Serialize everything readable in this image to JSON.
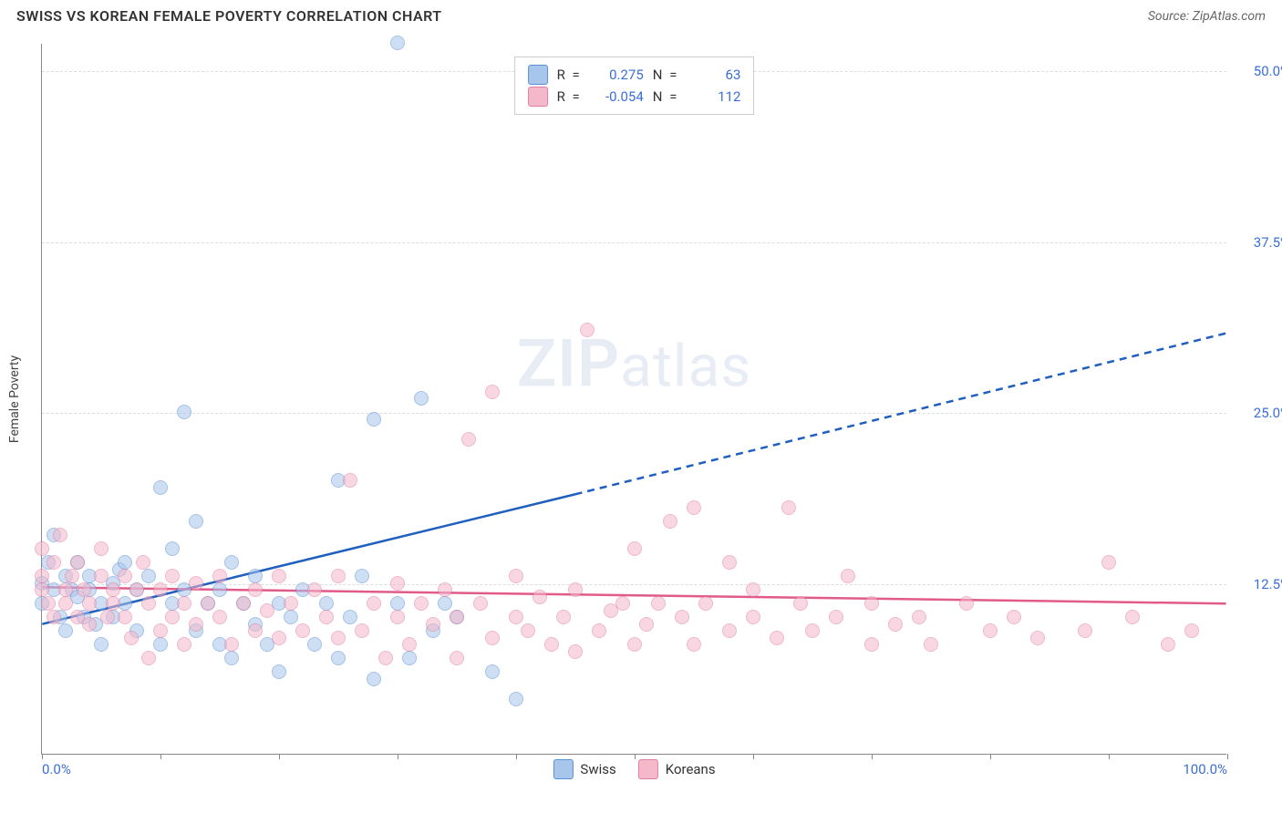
{
  "title": "SWISS VS KOREAN FEMALE POVERTY CORRELATION CHART",
  "source_label": "Source: ZipAtlas.com",
  "y_axis_label": "Female Poverty",
  "watermark": "ZIPatlas",
  "chart": {
    "type": "scatter",
    "xlim": [
      0,
      100
    ],
    "ylim": [
      0,
      52
    ],
    "background_color": "#ffffff",
    "grid_color": "#dddddd",
    "axis_color": "#888888",
    "y_ticks": [
      12.5,
      25.0,
      37.5,
      50.0
    ],
    "y_tick_labels": [
      "12.5%",
      "25.0%",
      "37.5%",
      "50.0%"
    ],
    "x_ticks": [
      0,
      10,
      20,
      30,
      40,
      50,
      60,
      70,
      80,
      90,
      100
    ],
    "x_tick_labels_shown": {
      "0": "0.0%",
      "100": "100.0%"
    },
    "tick_label_color": "#3b6fd6",
    "tick_label_fontsize": 15,
    "point_radius": 8,
    "point_opacity": 0.55,
    "series": [
      {
        "name": "Swiss",
        "color_fill": "#a8c5eb",
        "color_stroke": "#5b8fd6",
        "r_value": "0.275",
        "n_value": "63",
        "trend": {
          "x1": 0,
          "y1": 9.5,
          "x2": 45,
          "y2": 19.0,
          "x2_dash": 100,
          "y2_dash": 30.8,
          "color": "#1f5fbf",
          "width": 2.5
        },
        "points": [
          [
            0,
            11
          ],
          [
            0,
            12.5
          ],
          [
            0.5,
            14
          ],
          [
            1,
            12
          ],
          [
            1,
            16
          ],
          [
            1.5,
            10
          ],
          [
            2,
            13
          ],
          [
            2,
            9
          ],
          [
            2.5,
            12
          ],
          [
            3,
            11.5
          ],
          [
            3,
            14
          ],
          [
            3.5,
            10
          ],
          [
            4,
            12
          ],
          [
            4,
            13
          ],
          [
            4.5,
            9.5
          ],
          [
            5,
            11
          ],
          [
            5,
            8
          ],
          [
            6,
            12.5
          ],
          [
            6,
            10
          ],
          [
            6.5,
            13.5
          ],
          [
            7,
            11
          ],
          [
            7,
            14
          ],
          [
            8,
            9
          ],
          [
            8,
            12
          ],
          [
            9,
            13
          ],
          [
            10,
            19.5
          ],
          [
            10,
            8
          ],
          [
            11,
            11
          ],
          [
            11,
            15
          ],
          [
            12,
            25
          ],
          [
            12,
            12
          ],
          [
            13,
            9
          ],
          [
            13,
            17
          ],
          [
            14,
            11
          ],
          [
            15,
            8
          ],
          [
            15,
            12
          ],
          [
            16,
            14
          ],
          [
            16,
            7
          ],
          [
            17,
            11
          ],
          [
            18,
            9.5
          ],
          [
            18,
            13
          ],
          [
            19,
            8
          ],
          [
            20,
            11
          ],
          [
            20,
            6
          ],
          [
            21,
            10
          ],
          [
            22,
            12
          ],
          [
            23,
            8
          ],
          [
            24,
            11
          ],
          [
            25,
            20
          ],
          [
            25,
            7
          ],
          [
            26,
            10
          ],
          [
            27,
            13
          ],
          [
            28,
            5.5
          ],
          [
            28,
            24.5
          ],
          [
            30,
            11
          ],
          [
            30,
            52
          ],
          [
            31,
            7
          ],
          [
            32,
            26
          ],
          [
            33,
            9
          ],
          [
            34,
            11
          ],
          [
            35,
            10
          ],
          [
            38,
            6
          ],
          [
            40,
            4
          ]
        ]
      },
      {
        "name": "Koreans",
        "color_fill": "#f5b8cb",
        "color_stroke": "#e07fa3",
        "r_value": "-0.054",
        "n_value": "112",
        "trend": {
          "x1": 0,
          "y1": 12.2,
          "x2": 100,
          "y2": 11.0,
          "x2_dash": 100,
          "y2_dash": 11.0,
          "color": "#e05a8a",
          "width": 2.5
        },
        "points": [
          [
            0,
            12
          ],
          [
            0,
            15
          ],
          [
            0,
            13
          ],
          [
            0.5,
            11
          ],
          [
            1,
            14
          ],
          [
            1,
            10
          ],
          [
            1.5,
            16
          ],
          [
            2,
            12
          ],
          [
            2,
            11
          ],
          [
            2.5,
            13
          ],
          [
            3,
            10
          ],
          [
            3,
            14
          ],
          [
            3.5,
            12
          ],
          [
            4,
            11
          ],
          [
            4,
            9.5
          ],
          [
            5,
            13
          ],
          [
            5,
            15
          ],
          [
            5.5,
            10
          ],
          [
            6,
            12
          ],
          [
            6,
            11
          ],
          [
            7,
            13
          ],
          [
            7,
            10
          ],
          [
            7.5,
            8.5
          ],
          [
            8,
            12
          ],
          [
            8.5,
            14
          ],
          [
            9,
            7
          ],
          [
            9,
            11
          ],
          [
            10,
            12
          ],
          [
            10,
            9
          ],
          [
            11,
            13
          ],
          [
            11,
            10
          ],
          [
            12,
            8
          ],
          [
            12,
            11
          ],
          [
            13,
            12.5
          ],
          [
            13,
            9.5
          ],
          [
            14,
            11
          ],
          [
            15,
            10
          ],
          [
            15,
            13
          ],
          [
            16,
            8
          ],
          [
            17,
            11
          ],
          [
            18,
            12
          ],
          [
            18,
            9
          ],
          [
            19,
            10.5
          ],
          [
            20,
            13
          ],
          [
            20,
            8.5
          ],
          [
            21,
            11
          ],
          [
            22,
            9
          ],
          [
            23,
            12
          ],
          [
            24,
            10
          ],
          [
            25,
            8.5
          ],
          [
            25,
            13
          ],
          [
            26,
            20
          ],
          [
            27,
            9
          ],
          [
            28,
            11
          ],
          [
            29,
            7
          ],
          [
            30,
            10
          ],
          [
            30,
            12.5
          ],
          [
            31,
            8
          ],
          [
            32,
            11
          ],
          [
            33,
            9.5
          ],
          [
            34,
            12
          ],
          [
            35,
            7
          ],
          [
            35,
            10
          ],
          [
            36,
            23
          ],
          [
            37,
            11
          ],
          [
            38,
            8.5
          ],
          [
            38,
            26.5
          ],
          [
            40,
            10
          ],
          [
            40,
            13
          ],
          [
            41,
            9
          ],
          [
            42,
            11.5
          ],
          [
            43,
            8
          ],
          [
            44,
            10
          ],
          [
            45,
            12
          ],
          [
            45,
            7.5
          ],
          [
            46,
            31
          ],
          [
            47,
            9
          ],
          [
            48,
            10.5
          ],
          [
            49,
            11
          ],
          [
            50,
            8
          ],
          [
            50,
            15
          ],
          [
            51,
            9.5
          ],
          [
            52,
            11
          ],
          [
            53,
            17
          ],
          [
            54,
            10
          ],
          [
            55,
            8
          ],
          [
            55,
            18
          ],
          [
            56,
            11
          ],
          [
            58,
            9
          ],
          [
            58,
            14
          ],
          [
            60,
            10
          ],
          [
            60,
            12
          ],
          [
            62,
            8.5
          ],
          [
            63,
            18
          ],
          [
            64,
            11
          ],
          [
            65,
            9
          ],
          [
            67,
            10
          ],
          [
            68,
            13
          ],
          [
            70,
            8
          ],
          [
            70,
            11
          ],
          [
            72,
            9.5
          ],
          [
            74,
            10
          ],
          [
            75,
            8
          ],
          [
            78,
            11
          ],
          [
            80,
            9
          ],
          [
            82,
            10
          ],
          [
            84,
            8.5
          ],
          [
            88,
            9
          ],
          [
            90,
            14
          ],
          [
            92,
            10
          ],
          [
            95,
            8
          ],
          [
            97,
            9
          ]
        ]
      }
    ]
  },
  "legend_top": {
    "r_label": "R =",
    "n_label": "N ="
  },
  "legend_bottom": [
    {
      "label": "Swiss",
      "swatch_fill": "#a8c5eb",
      "swatch_stroke": "#5b8fd6"
    },
    {
      "label": "Koreans",
      "swatch_fill": "#f5b8cb",
      "swatch_stroke": "#e07fa3"
    }
  ]
}
